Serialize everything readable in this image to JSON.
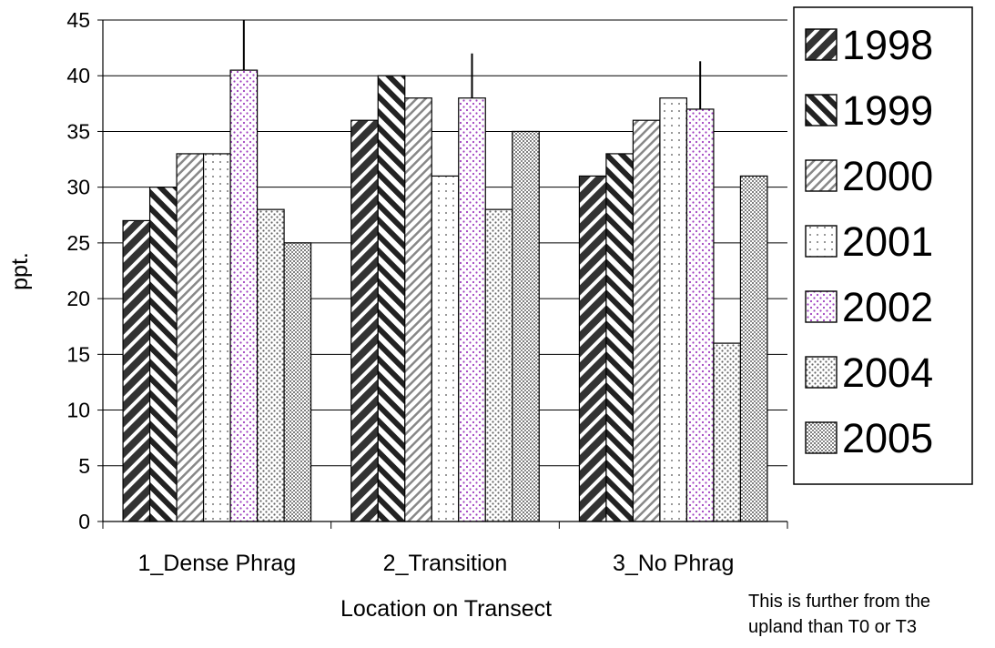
{
  "chart_data": {
    "type": "bar",
    "title": "",
    "xlabel": "Location on Transect",
    "ylabel": "ppt.",
    "ylim": [
      0,
      45
    ],
    "ytick_step": 5,
    "yticks": [
      "0",
      "5",
      "10",
      "15",
      "20",
      "25",
      "30",
      "35",
      "40",
      "45"
    ],
    "grid": true,
    "legend_position": "right",
    "categories": [
      "1_Dense Phrag",
      "2_Transition",
      "3_No Phrag"
    ],
    "series": [
      {
        "name": "1998",
        "values": [
          27,
          36,
          31
        ],
        "pattern": "diag-thick"
      },
      {
        "name": "1999",
        "values": [
          30,
          40,
          33
        ],
        "pattern": "diag-back"
      },
      {
        "name": "2000",
        "values": [
          33,
          38,
          36
        ],
        "pattern": "diag-light"
      },
      {
        "name": "2001",
        "values": [
          33,
          31,
          38
        ],
        "pattern": "dots-sparse"
      },
      {
        "name": "2002",
        "values": [
          40.5,
          38,
          37
        ],
        "pattern": "dots-purple"
      },
      {
        "name": "2004",
        "values": [
          28,
          28,
          16
        ],
        "pattern": "dots-dense"
      },
      {
        "name": "2005",
        "values": [
          25,
          35,
          31
        ],
        "pattern": "dots-heavy"
      }
    ],
    "error_bars": [
      {
        "series": "2002",
        "category": "1_Dense Phrag",
        "upper": 45
      },
      {
        "series": "2002",
        "category": "2_Transition",
        "upper": 42
      },
      {
        "series": "2002",
        "category": "3_No Phrag",
        "upper": 41.3
      }
    ],
    "annotation": [
      "This is further from the",
      "upland than T0 or T3"
    ],
    "colors": {
      "bar_stroke": "#000000",
      "grid": "#000000",
      "dots_purple": "#a040c0"
    }
  }
}
